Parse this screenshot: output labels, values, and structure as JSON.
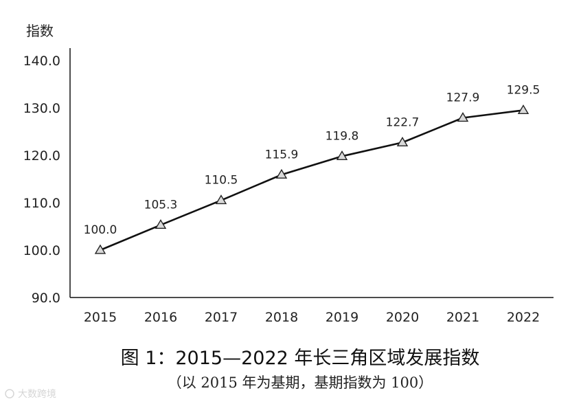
{
  "chart_data": {
    "type": "line",
    "ylabel": "指数",
    "x": [
      "2015",
      "2016",
      "2017",
      "2018",
      "2019",
      "2020",
      "2021",
      "2022"
    ],
    "values": [
      100.0,
      105.3,
      110.5,
      115.9,
      119.8,
      122.7,
      127.9,
      129.5
    ],
    "data_labels": [
      "100.0",
      "105.3",
      "110.5",
      "115.9",
      "119.8",
      "122.7",
      "127.9",
      "129.5"
    ],
    "y_ticks": [
      "90.0",
      "100.0",
      "110.0",
      "120.0",
      "130.0",
      "140.0"
    ],
    "ylim": [
      90,
      140
    ],
    "grid": false,
    "marker": "triangle",
    "line_color": "#111111",
    "marker_fill": "#d9d9d9"
  },
  "caption": {
    "title": "图 1：2015—2022 年长三角区域发展指数",
    "subtitle": "（以 2015 年为基期，基期指数为 100）"
  },
  "watermark": {
    "text": "大数跨境"
  }
}
